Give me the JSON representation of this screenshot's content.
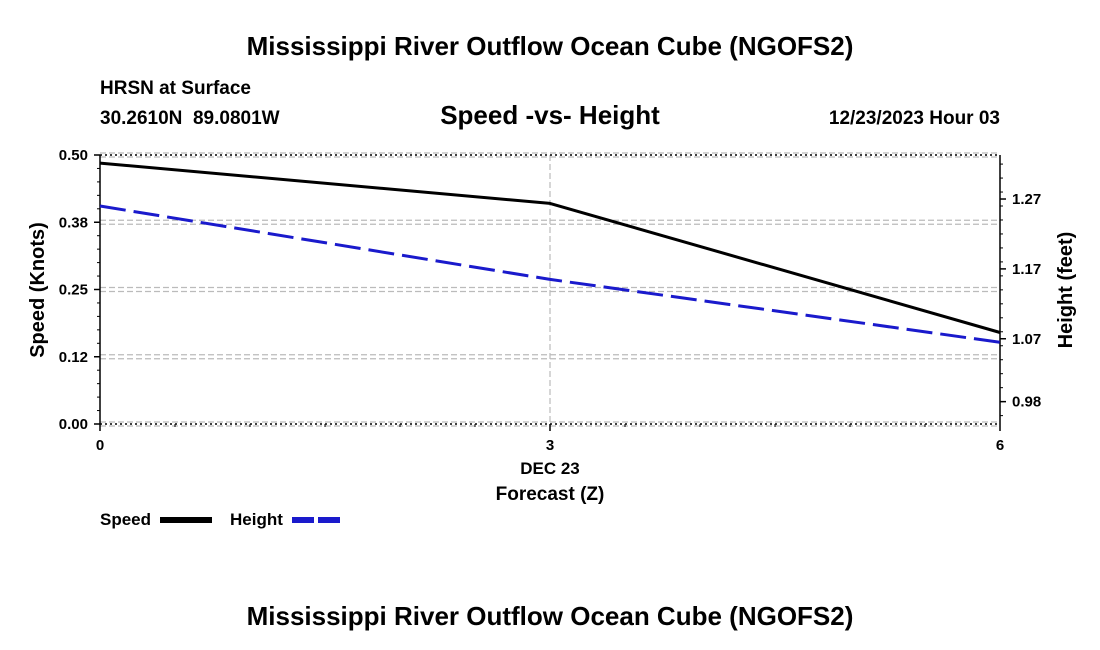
{
  "page_title": "Mississippi River Outflow Ocean Cube (NGOFS2)",
  "footer_title": "Mississippi River Outflow Ocean Cube (NGOFS2)",
  "station": {
    "name": "HRSN at Surface",
    "coords": "30.2610N  89.0801W"
  },
  "forecast_time": "12/23/2023 Hour 03",
  "chart_data": {
    "type": "line",
    "title": "Speed -vs- Height",
    "x": [
      0,
      3,
      6
    ],
    "xlim": [
      0,
      6
    ],
    "x_ticks": [
      "0",
      "3",
      "6"
    ],
    "date_label": "DEC 23",
    "xlabel": "Forecast (Z)",
    "left_axis": {
      "label": "Speed (Knots)",
      "ylim": [
        0.0,
        0.5
      ],
      "ticks": [
        0.0,
        0.125,
        0.25,
        0.375,
        0.5
      ],
      "tick_labels": [
        "0.00",
        "0.12",
        "0.25",
        "0.38",
        "0.50"
      ]
    },
    "right_axis": {
      "label": "Height (feet)",
      "ylim": [
        0.948,
        1.333
      ],
      "ticks": [
        0.98,
        1.07,
        1.17,
        1.27
      ],
      "tick_labels": [
        "0.98",
        "1.07",
        "1.17",
        "1.27"
      ]
    },
    "series": [
      {
        "name": "Speed",
        "axis": "left",
        "values": [
          0.485,
          0.41,
          0.17
        ],
        "color": "#000000",
        "dash": "solid"
      },
      {
        "name": "Height",
        "axis": "right",
        "values": [
          1.26,
          1.155,
          1.065
        ],
        "color": "#1a1acc",
        "dash": "dashed"
      }
    ],
    "legend": {
      "position": "bottom-left",
      "entries": [
        "Speed",
        "Height"
      ]
    },
    "grid": true
  }
}
